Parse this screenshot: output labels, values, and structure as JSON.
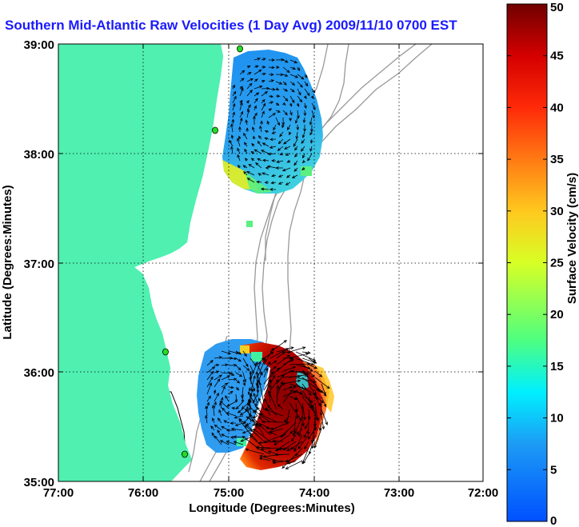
{
  "title": "Southern Mid-Atlantic Raw Velocities (1 Day Avg) 2009/11/10 0700 EST",
  "axes": {
    "xlabel": "Longitude (Degrees:Minutes)",
    "ylabel": "Latitude (Degrees:Minutes)",
    "x_ticks": [
      "77:00",
      "76:00",
      "75:00",
      "74:00",
      "73:00",
      "72:00"
    ],
    "y_ticks": [
      "39:00",
      "38:00",
      "37:00",
      "36:00",
      "35:00"
    ],
    "grid": "dotted"
  },
  "colorbar": {
    "label": "Surface Velocity (cm/s)",
    "ticks": [
      "50",
      "45",
      "40",
      "35",
      "30",
      "25",
      "20",
      "15",
      "10",
      "5",
      "0"
    ],
    "range": [
      0,
      50
    ]
  },
  "colors": {
    "land": "#4ff0b0",
    "water": "#ffffff",
    "title": "#1a1aff",
    "station": "#22dd22",
    "bathymetry": "#999999"
  },
  "map_data": {
    "lon_range": [
      -77,
      -72
    ],
    "lat_range": [
      35,
      39
    ],
    "stations": [
      {
        "lon": -74.9,
        "lat": 39.0
      },
      {
        "lon": -75.1,
        "lat": 38.22
      },
      {
        "lon": -75.5,
        "lat": 36.18
      },
      {
        "lon": -75.5,
        "lat": 35.25
      }
    ],
    "current_patches": [
      {
        "name": "northern",
        "lon_range": [
          -75.15,
          -74.1
        ],
        "lat_range": [
          37.65,
          38.95
        ],
        "speed_cm_s": [
          5,
          25
        ]
      },
      {
        "name": "southern",
        "lon_range": [
          -75.55,
          -73.6
        ],
        "lat_range": [
          35.1,
          36.45
        ],
        "speed_cm_s": [
          5,
          50
        ]
      }
    ]
  }
}
